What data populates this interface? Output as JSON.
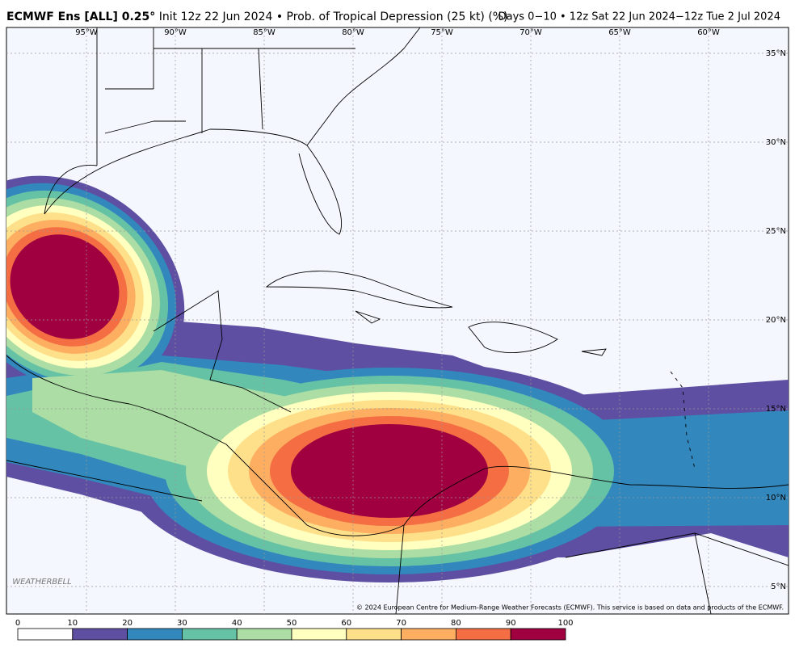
{
  "header": {
    "title_bold": "ECMWF Ens [ALL] 0.25°",
    "title_rest": "Init 12z 22 Jun 2024 • Prob. of Tropical Depression (25 kt) (%)",
    "period": "Days 0−10 • 12z Sat 22 Jun 2024−12z Tue 2 Jul 2024"
  },
  "map": {
    "lon_labels": [
      "95°W",
      "90°W",
      "85°W",
      "80°W",
      "75°W",
      "70°W",
      "65°W",
      "60°W"
    ],
    "lat_labels": [
      "35°N",
      "30°N",
      "25°N",
      "20°N",
      "15°N",
      "10°N",
      "5°N"
    ],
    "logo": "WEATHERBELL",
    "credit": "© 2024 European Centre for Medium-Range Weather Forecasts (ECMWF). This service is based on data and products of the ECMWF."
  },
  "colorbar": {
    "ticks": [
      0,
      10,
      20,
      30,
      40,
      50,
      60,
      70,
      80,
      90,
      100
    ],
    "colors": [
      "#ffffff",
      "#5e4fa2",
      "#3288bd",
      "#66c2a5",
      "#abdda4",
      "#ffffbf",
      "#fee08b",
      "#fdae61",
      "#f46d43",
      "#a0003f"
    ]
  }
}
